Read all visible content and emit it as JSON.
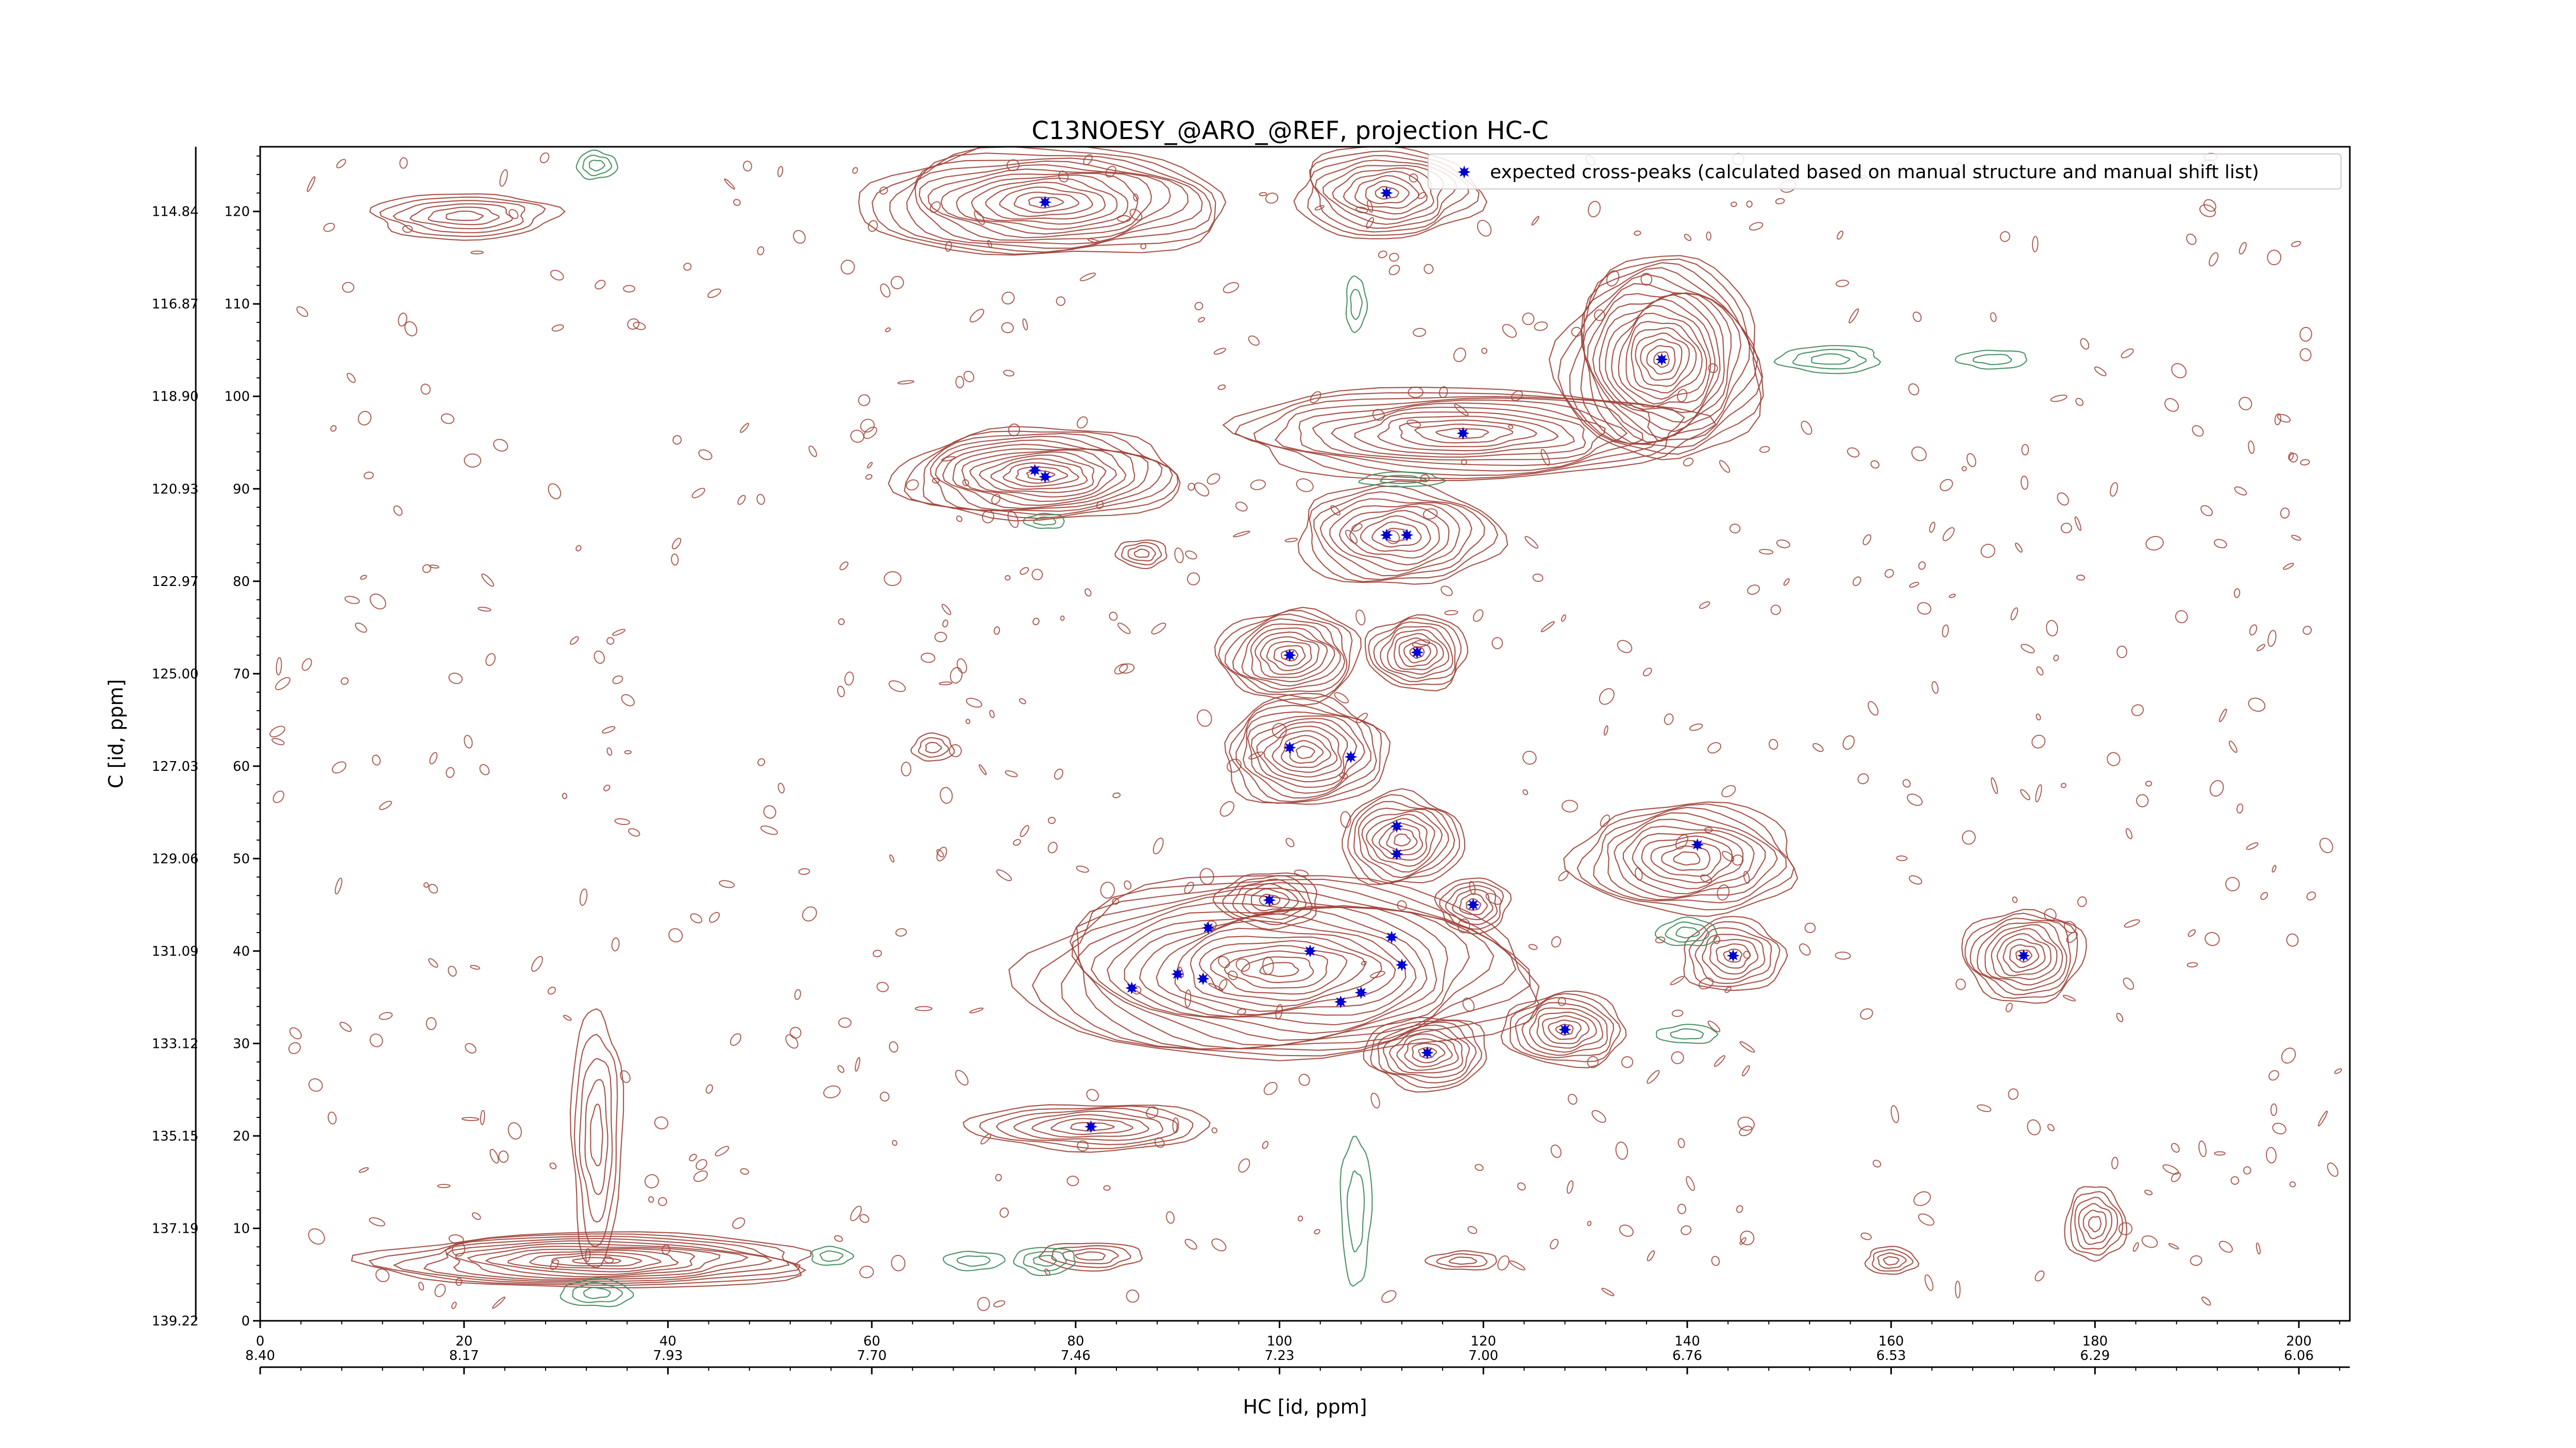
{
  "chart_data": {
    "type": "scatter",
    "title": "C13NOESY_@ARO_@REF, projection HC-C",
    "xlabel": "HC [id, ppm]",
    "ylabel": "C [id, ppm]",
    "xlim": [
      0,
      205
    ],
    "ylim": [
      0,
      127
    ],
    "x_index_ticks": [
      "0",
      "20",
      "40",
      "60",
      "80",
      "100",
      "120",
      "140",
      "160",
      "180",
      "200"
    ],
    "x_ppm_ticks": [
      "8.40",
      "8.17",
      "7.93",
      "7.70",
      "7.46",
      "7.23",
      "7.00",
      "6.76",
      "6.53",
      "6.29",
      "6.06"
    ],
    "y_index_ticks": [
      "0",
      "10",
      "20",
      "30",
      "40",
      "50",
      "60",
      "70",
      "80",
      "90",
      "100",
      "110",
      "120"
    ],
    "y_ppm_ticks": [
      "139.22",
      "137.19",
      "135.15",
      "133.12",
      "131.09",
      "129.06",
      "127.03",
      "125.00",
      "122.97",
      "120.93",
      "118.90",
      "116.87",
      "114.84"
    ],
    "legend": {
      "placement": "top-right",
      "label": "expected cross-peaks (calculated based on manual structure and manual shift list)"
    },
    "colors": {
      "positive_contour": "#a0443a",
      "negative_contour": "#3f8a5c",
      "marker": "#0000d0"
    },
    "series": [
      {
        "name": "expected cross-peaks (calculated based on manual structure and manual shift list)",
        "points": [
          {
            "x": 77,
            "y": 121
          },
          {
            "x": 110.5,
            "y": 122
          },
          {
            "x": 137.5,
            "y": 104
          },
          {
            "x": 118,
            "y": 96
          },
          {
            "x": 76,
            "y": 92
          },
          {
            "x": 77,
            "y": 91.3
          },
          {
            "x": 110.5,
            "y": 85
          },
          {
            "x": 112.5,
            "y": 85
          },
          {
            "x": 101,
            "y": 72
          },
          {
            "x": 113.5,
            "y": 72.3
          },
          {
            "x": 101,
            "y": 62
          },
          {
            "x": 107,
            "y": 61
          },
          {
            "x": 111.5,
            "y": 53.5
          },
          {
            "x": 111.5,
            "y": 50.5
          },
          {
            "x": 141,
            "y": 51.5
          },
          {
            "x": 99,
            "y": 45.5
          },
          {
            "x": 119,
            "y": 45
          },
          {
            "x": 93,
            "y": 42.5
          },
          {
            "x": 111,
            "y": 41.5
          },
          {
            "x": 103,
            "y": 40
          },
          {
            "x": 144.5,
            "y": 39.5
          },
          {
            "x": 173,
            "y": 39.5
          },
          {
            "x": 112,
            "y": 38.5
          },
          {
            "x": 90,
            "y": 37.5
          },
          {
            "x": 92.5,
            "y": 37
          },
          {
            "x": 85.5,
            "y": 36
          },
          {
            "x": 108,
            "y": 35.5
          },
          {
            "x": 106,
            "y": 34.5
          },
          {
            "x": 128,
            "y": 31.5
          },
          {
            "x": 114.5,
            "y": 29
          },
          {
            "x": 81.5,
            "y": 21
          }
        ]
      }
    ],
    "contours": {
      "positive": [
        {
          "x": 77,
          "y": 121,
          "rx": 18,
          "ry": 6,
          "n": 14
        },
        {
          "x": 110.5,
          "y": 122,
          "rx": 9,
          "ry": 5,
          "n": 10
        },
        {
          "x": 20,
          "y": 119.5,
          "rx": 9,
          "ry": 2.5,
          "n": 6
        },
        {
          "x": 137.5,
          "y": 104,
          "rx": 10,
          "ry": 11,
          "n": 18
        },
        {
          "x": 118,
          "y": 96,
          "rx": 23,
          "ry": 5,
          "n": 12
        },
        {
          "x": 76.5,
          "y": 91.5,
          "rx": 14,
          "ry": 5,
          "n": 14
        },
        {
          "x": 111.5,
          "y": 85,
          "rx": 10,
          "ry": 5.5,
          "n": 10
        },
        {
          "x": 86.5,
          "y": 83,
          "rx": 2.5,
          "ry": 1.5,
          "n": 4
        },
        {
          "x": 101,
          "y": 72,
          "rx": 7,
          "ry": 5,
          "n": 11
        },
        {
          "x": 113.5,
          "y": 72.3,
          "rx": 5,
          "ry": 4,
          "n": 9
        },
        {
          "x": 102.5,
          "y": 61.5,
          "rx": 8,
          "ry": 6,
          "n": 12
        },
        {
          "x": 112,
          "y": 52,
          "rx": 6,
          "ry": 5,
          "n": 10
        },
        {
          "x": 140,
          "y": 50,
          "rx": 11,
          "ry": 6,
          "n": 11
        },
        {
          "x": 144.5,
          "y": 39.5,
          "rx": 5,
          "ry": 4,
          "n": 7
        },
        {
          "x": 173,
          "y": 39.5,
          "rx": 6,
          "ry": 5,
          "n": 10
        },
        {
          "x": 99,
          "y": 45.5,
          "rx": 5,
          "ry": 3,
          "n": 6
        },
        {
          "x": 119,
          "y": 45,
          "rx": 3.5,
          "ry": 3,
          "n": 6
        },
        {
          "x": 100,
          "y": 38,
          "rx": 25,
          "ry": 10,
          "n": 18
        },
        {
          "x": 128,
          "y": 31.5,
          "rx": 6,
          "ry": 4,
          "n": 9
        },
        {
          "x": 114.5,
          "y": 29,
          "rx": 6,
          "ry": 4,
          "n": 9
        },
        {
          "x": 81.5,
          "y": 21,
          "rx": 12,
          "ry": 2.5,
          "n": 7
        },
        {
          "x": 33,
          "y": 6.5,
          "rx": 22,
          "ry": 3,
          "n": 12
        },
        {
          "x": 33,
          "y": 20,
          "rx": 2.5,
          "ry": 14,
          "n": 5
        },
        {
          "x": 180,
          "y": 10.5,
          "rx": 3,
          "ry": 4,
          "n": 6
        },
        {
          "x": 160,
          "y": 6.5,
          "rx": 2.5,
          "ry": 1.5,
          "n": 4
        },
        {
          "x": 66,
          "y": 62,
          "rx": 2,
          "ry": 1.5,
          "n": 3
        },
        {
          "x": 118,
          "y": 6.5,
          "rx": 3.5,
          "ry": 1,
          "n": 3
        },
        {
          "x": 81.5,
          "y": 7,
          "rx": 5,
          "ry": 1.5,
          "n": 4
        }
      ],
      "negative": [
        {
          "x": 33,
          "y": 125,
          "rx": 2,
          "ry": 1.5,
          "n": 3
        },
        {
          "x": 33,
          "y": 3,
          "rx": 3.5,
          "ry": 1.5,
          "n": 3
        },
        {
          "x": 154,
          "y": 104,
          "rx": 5,
          "ry": 1.5,
          "n": 3
        },
        {
          "x": 170,
          "y": 104,
          "rx": 3.5,
          "ry": 1,
          "n": 2
        },
        {
          "x": 107.5,
          "y": 12,
          "rx": 1.5,
          "ry": 8,
          "n": 2
        },
        {
          "x": 107.5,
          "y": 110,
          "rx": 1,
          "ry": 3,
          "n": 2
        },
        {
          "x": 140,
          "y": 42,
          "rx": 3,
          "ry": 1.5,
          "n": 3
        },
        {
          "x": 140,
          "y": 31,
          "rx": 3,
          "ry": 1,
          "n": 2
        },
        {
          "x": 77,
          "y": 6.5,
          "rx": 3,
          "ry": 1.5,
          "n": 3
        },
        {
          "x": 70,
          "y": 6.5,
          "rx": 3,
          "ry": 1,
          "n": 2
        },
        {
          "x": 56,
          "y": 7,
          "rx": 2,
          "ry": 1,
          "n": 2
        },
        {
          "x": 112,
          "y": 91,
          "rx": 4,
          "ry": 0.8,
          "n": 2
        },
        {
          "x": 77,
          "y": 86.5,
          "rx": 2,
          "ry": 0.8,
          "n": 2
        }
      ]
    }
  }
}
